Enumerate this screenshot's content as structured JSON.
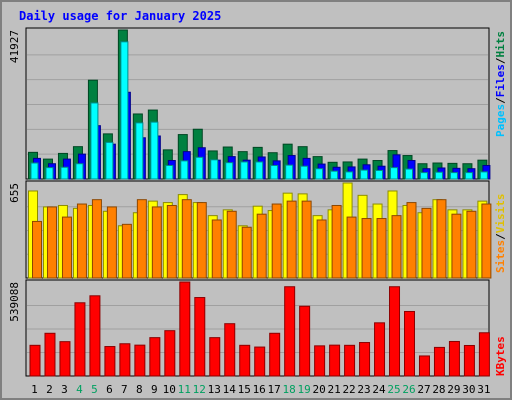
{
  "chart_data": {
    "type": "bar",
    "title": "Daily usage for January 2025",
    "categories": [
      "1",
      "2",
      "3",
      "4",
      "5",
      "6",
      "7",
      "8",
      "9",
      "10",
      "11",
      "12",
      "13",
      "14",
      "15",
      "16",
      "17",
      "18",
      "19",
      "20",
      "21",
      "22",
      "23",
      "24",
      "25",
      "26",
      "27",
      "28",
      "29",
      "30",
      "31"
    ],
    "weekend_days": [
      "4",
      "5",
      "11",
      "12",
      "18",
      "19",
      "25",
      "26"
    ],
    "panels": [
      {
        "name": "hits-files-pages",
        "max_label": "41927",
        "ylim": [
          0,
          41927
        ],
        "series": [
          {
            "name": "Hits",
            "color": "#008040",
            "values": [
              7500,
              5600,
              7200,
              9100,
              27800,
              12700,
              41927,
              18300,
              19400,
              8200,
              12500,
              14000,
              7900,
              9000,
              7700,
              8900,
              7400,
              9800,
              9100,
              6300,
              4700,
              4800,
              5600,
              5200,
              8000,
              6600,
              4300,
              4500,
              4400,
              4300,
              5300
            ]
          },
          {
            "name": "Files",
            "color": "#0000ff",
            "values": [
              5800,
              4300,
              5600,
              7000,
              15000,
              9800,
              24400,
              11600,
              12100,
              5200,
              7700,
              8800,
              5300,
              6300,
              5300,
              6200,
              5100,
              6600,
              5800,
              4200,
              3300,
              3400,
              4000,
              3600,
              6800,
              5200,
              2900,
              3100,
              3000,
              2900,
              3800
            ]
          },
          {
            "name": "Pages",
            "color": "#00ffff",
            "values": [
              4500,
              3200,
              3300,
              4300,
              21400,
              10300,
              38600,
              15800,
              16000,
              3800,
              5100,
              6100,
              5400,
              4600,
              4800,
              4800,
              3800,
              3900,
              3600,
              2900,
              2200,
              2000,
              2500,
              2400,
              3200,
              2800,
              1800,
              1900,
              1800,
              1800,
              2000
            ]
          }
        ]
      },
      {
        "name": "visits-sites",
        "max_label": "655",
        "ylim": [
          0,
          655
        ],
        "series": [
          {
            "name": "Visits",
            "color": "#ffff00",
            "values": [
              600,
              490,
              500,
              480,
              500,
              460,
              360,
              450,
              530,
              520,
              575,
              520,
              430,
              470,
              360,
              495,
              465,
              585,
              580,
              430,
              470,
              655,
              570,
              510,
              600,
              500,
              450,
              540,
              470,
              470,
              530
            ]
          },
          {
            "name": "Sites",
            "color": "#ff8000",
            "values": [
              390,
              490,
              420,
              510,
              540,
              490,
              370,
              540,
              490,
              500,
              540,
              520,
              400,
              460,
              350,
              440,
              510,
              530,
              530,
              400,
              500,
              420,
              410,
              410,
              430,
              520,
              480,
              540,
              440,
              460,
              510
            ]
          }
        ]
      },
      {
        "name": "kbytes",
        "max_label": "539088",
        "ylim": [
          0,
          539088
        ],
        "series": [
          {
            "name": "KBytes",
            "color": "#ff0000",
            "values": [
              176000,
              245000,
              197000,
              420000,
              460000,
              169000,
              185000,
              177000,
              220000,
              260000,
              539000,
              450000,
              220000,
              300000,
              176000,
              166000,
              245000,
              512000,
              400000,
              173000,
              177000,
              176000,
              192000,
              305000,
              512000,
              370000,
              115000,
              164000,
              198000,
              175000,
              248000
            ]
          }
        ]
      }
    ],
    "legend": [
      "Pages",
      "Files",
      "Hits",
      "Sites",
      "Visits",
      "KBytes"
    ],
    "label_colors": {
      "Pages": "#00c0ff",
      "Files": "#0000ff",
      "Hits": "#008040",
      "Sites": "#ff8000",
      "Visits": "#e0c000",
      "KBytes": "#ff0000",
      "separator": "#000000"
    },
    "tick_colors": {
      "weekday": "#000000",
      "weekend": "#00a060"
    },
    "colors": {
      "background": "#c0c0c0",
      "title": "#0000ff",
      "frame": "#808080",
      "gridline": "#a0a0a0"
    }
  }
}
